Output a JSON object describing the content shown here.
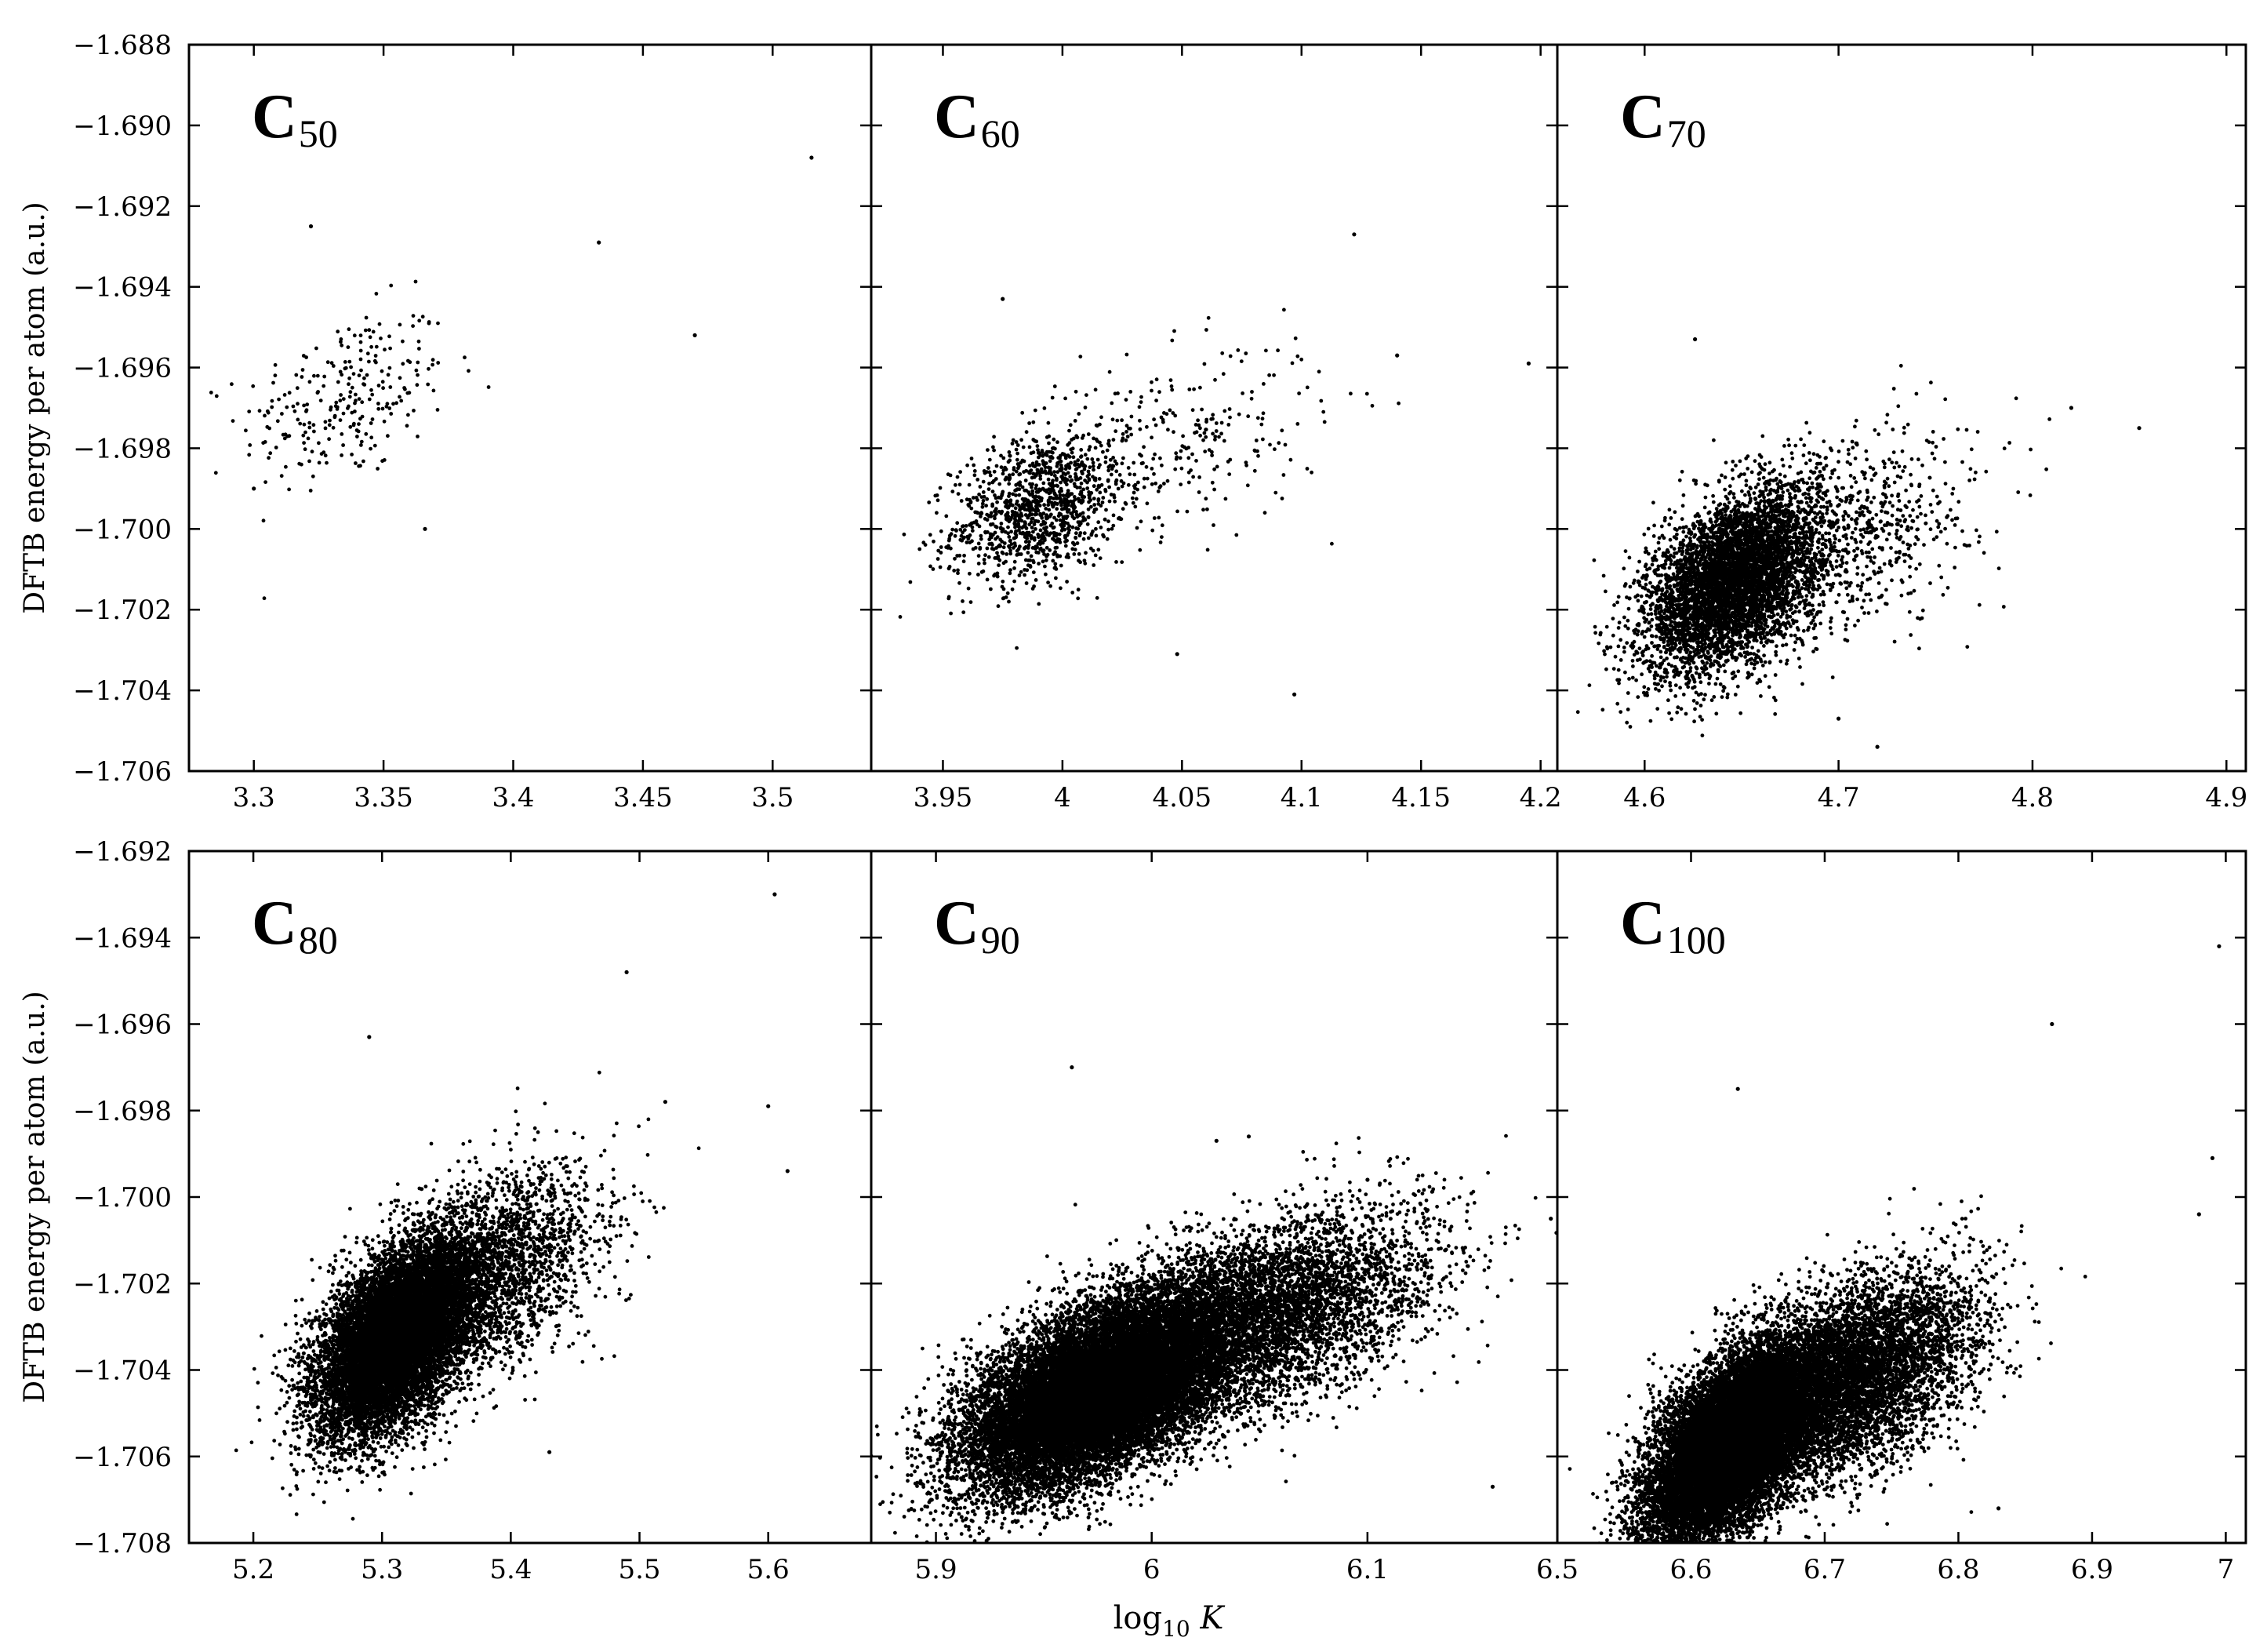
{
  "chart_data": [
    {
      "type": "scatter",
      "panel": "C50",
      "title_main": "C",
      "title_sub": "50",
      "xlim": [
        3.275,
        3.538
      ],
      "ylim": [
        -1.706,
        -1.688
      ],
      "xticks": [
        "3.3",
        "3.35",
        "3.4",
        "3.45",
        "3.5"
      ],
      "xtick_values": [
        3.3,
        3.35,
        3.4,
        3.45,
        3.5
      ],
      "yticks": [
        "-1.688",
        "-1.690",
        "-1.692",
        "-1.694",
        "-1.696",
        "-1.698",
        "-1.700",
        "-1.702",
        "-1.704",
        "-1.706"
      ],
      "ytick_values": [
        -1.688,
        -1.69,
        -1.692,
        -1.694,
        -1.696,
        -1.698,
        -1.7,
        -1.702,
        -1.704,
        -1.706
      ],
      "ylabel": "DFTB energy per atom (a.u.)",
      "clusters": [
        {
          "cx": 3.335,
          "cy": -1.6968,
          "sx": 0.02,
          "sy": 0.0011,
          "n": 260,
          "rho": 0.35
        }
      ],
      "points": [
        [
          3.515,
          -1.6908
        ],
        [
          3.322,
          -1.6925
        ],
        [
          3.433,
          -1.6929
        ],
        [
          3.47,
          -1.6952
        ],
        [
          3.366,
          -1.7
        ],
        [
          3.3,
          -1.699
        ]
      ]
    },
    {
      "type": "scatter",
      "panel": "C60",
      "title_main": "C",
      "title_sub": "60",
      "xlim": [
        3.92,
        4.207
      ],
      "ylim": [
        -1.706,
        -1.688
      ],
      "xticks": [
        "3.95",
        "4",
        "4.05",
        "4.1",
        "4.15",
        "4.2"
      ],
      "xtick_values": [
        3.95,
        4.0,
        4.05,
        4.1,
        4.15,
        4.2
      ],
      "yticks": [],
      "ytick_values": [
        -1.688,
        -1.69,
        -1.692,
        -1.694,
        -1.696,
        -1.698,
        -1.7,
        -1.702,
        -1.704,
        -1.706
      ],
      "ylabel": "",
      "clusters": [
        {
          "cx": 3.99,
          "cy": -1.6995,
          "sx": 0.018,
          "sy": 0.0009,
          "n": 1100,
          "rho": 0.3
        },
        {
          "cx": 4.04,
          "cy": -1.698,
          "sx": 0.035,
          "sy": 0.0012,
          "n": 320,
          "rho": 0.35
        }
      ],
      "points": [
        [
          3.975,
          -1.6943
        ],
        [
          4.122,
          -1.6927
        ],
        [
          4.195,
          -1.6959
        ],
        [
          4.048,
          -1.7031
        ],
        [
          4.097,
          -1.7041
        ],
        [
          4.14,
          -1.6957
        ]
      ]
    },
    {
      "type": "scatter",
      "panel": "C70",
      "title_main": "C",
      "title_sub": "70",
      "xlim": [
        4.555,
        4.91
      ],
      "ylim": [
        -1.706,
        -1.688
      ],
      "xticks": [
        "4.6",
        "4.7",
        "4.8",
        "4.9"
      ],
      "xtick_values": [
        4.6,
        4.7,
        4.8,
        4.9
      ],
      "yticks": [],
      "ytick_values": [
        -1.688,
        -1.69,
        -1.692,
        -1.694,
        -1.696,
        -1.698,
        -1.7,
        -1.702,
        -1.704,
        -1.706
      ],
      "ylabel": "",
      "clusters": [
        {
          "cx": 4.645,
          "cy": -1.7013,
          "sx": 0.022,
          "sy": 0.0011,
          "n": 5200,
          "rho": 0.45
        },
        {
          "cx": 4.7,
          "cy": -1.7002,
          "sx": 0.035,
          "sy": 0.0013,
          "n": 900,
          "rho": 0.4
        }
      ],
      "points": [
        [
          4.626,
          -1.6953
        ],
        [
          4.855,
          -1.6975
        ],
        [
          4.82,
          -1.697
        ],
        [
          4.72,
          -1.7054
        ],
        [
          4.7,
          -1.7047
        ]
      ]
    },
    {
      "type": "scatter",
      "panel": "C80",
      "title_main": "C",
      "title_sub": "80",
      "xlim": [
        5.15,
        5.68
      ],
      "ylim": [
        -1.708,
        -1.692
      ],
      "xticks": [
        "5.2",
        "5.3",
        "5.4",
        "5.5",
        "5.6"
      ],
      "xtick_values": [
        5.2,
        5.3,
        5.4,
        5.5,
        5.6
      ],
      "yticks": [
        "-1.692",
        "-1.694",
        "-1.696",
        "-1.698",
        "-1.700",
        "-1.702",
        "-1.704",
        "-1.706",
        "-1.708"
      ],
      "ytick_values": [
        -1.692,
        -1.694,
        -1.696,
        -1.698,
        -1.7,
        -1.702,
        -1.704,
        -1.706,
        -1.708
      ],
      "ylabel": "DFTB energy per atom (a.u.)",
      "clusters": [
        {
          "cx": 5.31,
          "cy": -1.7033,
          "sx": 0.03,
          "sy": 0.0011,
          "n": 11000,
          "rho": 0.5
        },
        {
          "cx": 5.38,
          "cy": -1.7018,
          "sx": 0.045,
          "sy": 0.0012,
          "n": 2500,
          "rho": 0.45
        }
      ],
      "points": [
        [
          5.605,
          -1.693
        ],
        [
          5.49,
          -1.6948
        ],
        [
          5.29,
          -1.6963
        ],
        [
          5.6,
          -1.6979
        ],
        [
          5.52,
          -1.6978
        ],
        [
          5.615,
          -1.6994
        ],
        [
          5.43,
          -1.7059
        ]
      ]
    },
    {
      "type": "scatter",
      "panel": "C90",
      "title_main": "C",
      "title_sub": "90",
      "xlim": [
        5.87,
        6.188
      ],
      "ylim": [
        -1.708,
        -1.692
      ],
      "xticks": [
        "5.9",
        "6",
        "6.1"
      ],
      "xtick_values": [
        5.9,
        6.0,
        6.1
      ],
      "yticks": [],
      "ytick_values": [
        -1.692,
        -1.694,
        -1.696,
        -1.698,
        -1.7,
        -1.702,
        -1.704,
        -1.706,
        -1.708
      ],
      "ylabel": "",
      "clusters": [
        {
          "cx": 5.975,
          "cy": -1.7045,
          "sx": 0.03,
          "sy": 0.0011,
          "n": 18000,
          "rho": 0.55
        },
        {
          "cx": 6.05,
          "cy": -1.7028,
          "sx": 0.04,
          "sy": 0.0012,
          "n": 5000,
          "rho": 0.5
        }
      ],
      "points": [
        [
          5.963,
          -1.697
        ],
        [
          6.03,
          -1.6987
        ],
        [
          6.045,
          -1.6986
        ],
        [
          6.1,
          -1.6996
        ],
        [
          6.185,
          -1.7005
        ],
        [
          6.158,
          -1.7067
        ]
      ]
    },
    {
      "type": "scatter",
      "panel": "C100",
      "title_main": "C",
      "title_sub": "100",
      "xlim": [
        6.5,
        7.015
      ],
      "ylim": [
        -1.708,
        -1.692
      ],
      "xticks": [
        "6.5",
        "6.6",
        "6.7",
        "6.8",
        "6.9",
        "7"
      ],
      "xtick_values": [
        6.5,
        6.6,
        6.7,
        6.8,
        6.9,
        7.0
      ],
      "yticks": [],
      "ytick_values": [
        -1.692,
        -1.694,
        -1.696,
        -1.698,
        -1.7,
        -1.702,
        -1.704,
        -1.706,
        -1.708
      ],
      "ylabel": "",
      "clusters": [
        {
          "cx": 6.63,
          "cy": -1.7057,
          "sx": 0.03,
          "sy": 0.0011,
          "n": 16000,
          "rho": 0.55
        },
        {
          "cx": 6.72,
          "cy": -1.7042,
          "sx": 0.045,
          "sy": 0.0012,
          "n": 6000,
          "rho": 0.5
        }
      ],
      "points": [
        [
          6.995,
          -1.6942
        ],
        [
          6.87,
          -1.696
        ],
        [
          6.635,
          -1.6975
        ],
        [
          6.99,
          -1.6991
        ],
        [
          6.98,
          -1.7004
        ],
        [
          6.83,
          -1.7072
        ]
      ]
    }
  ],
  "xlabel_main": "log",
  "xlabel_sub": "10",
  "xlabel_var": "K"
}
